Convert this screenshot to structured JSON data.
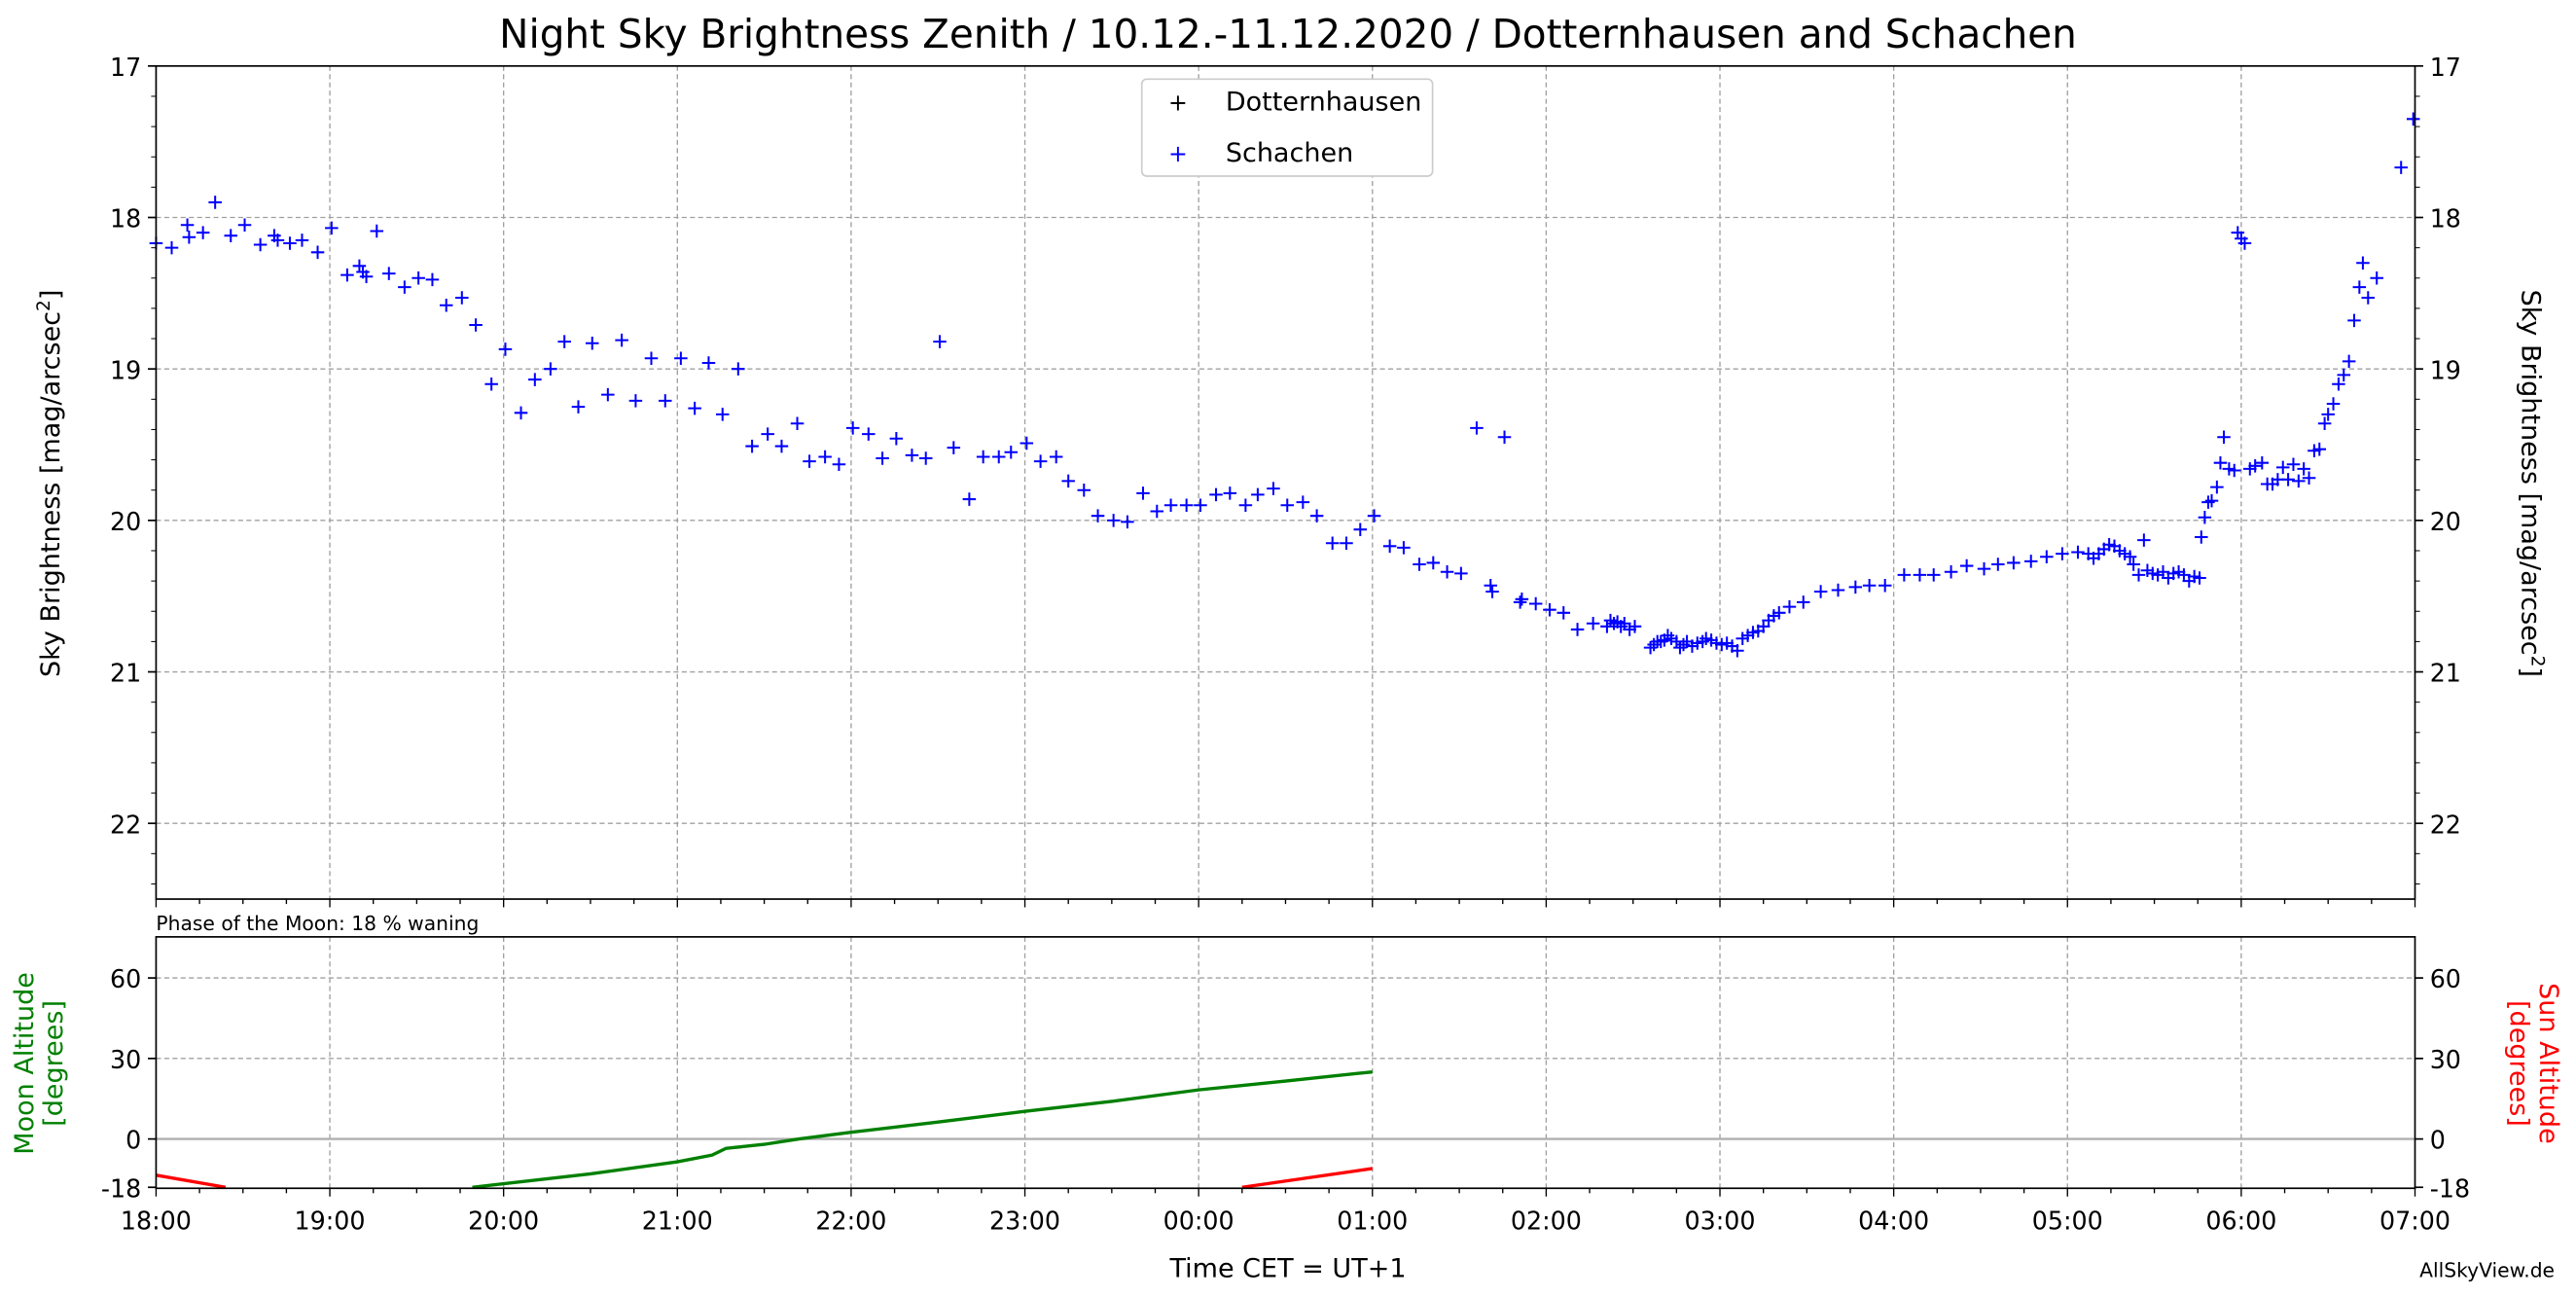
{
  "chart_data": [
    {
      "type": "scatter",
      "title": "Night Sky Brightness Zenith / 10.12.-11.12.2020 / Dotternhausen and Schachen",
      "ylabel": "Sky Brightness [mag/arcsec²]",
      "ylabel_right": "Sky Brightness [mag/arcsec²]",
      "ylim": [
        22.5,
        17
      ],
      "yticks": [
        "17",
        "18",
        "19",
        "20",
        "21",
        "22"
      ],
      "xlim_hours_after_1800": [
        0,
        13
      ],
      "grid": true,
      "legend_position": "top-center",
      "legend": [
        "Dotternhausen",
        "Schachen"
      ],
      "series": [
        {
          "name": "Dotternhausen",
          "color": "#000000",
          "points": []
        },
        {
          "name": "Schachen",
          "color": "#0000ff",
          "points": [
            [
              0,
              18.17
            ],
            [
              0.09,
              18.2
            ],
            [
              0.18,
              18.05
            ],
            [
              0.19,
              18.13
            ],
            [
              0.27,
              18.1
            ],
            [
              0.34,
              17.9
            ],
            [
              0.43,
              18.12
            ],
            [
              0.51,
              18.05
            ],
            [
              0.6,
              18.18
            ],
            [
              0.68,
              18.12
            ],
            [
              0.7,
              18.15
            ],
            [
              0.77,
              18.17
            ],
            [
              0.84,
              18.15
            ],
            [
              0.93,
              18.23
            ],
            [
              1.01,
              18.07
            ],
            [
              1.1,
              18.38
            ],
            [
              1.17,
              18.32
            ],
            [
              1.19,
              18.36
            ],
            [
              1.21,
              18.39
            ],
            [
              1.27,
              18.09
            ],
            [
              1.34,
              18.37
            ],
            [
              1.43,
              18.46
            ],
            [
              1.51,
              18.4
            ],
            [
              1.59,
              18.41
            ],
            [
              1.67,
              18.58
            ],
            [
              1.76,
              18.53
            ],
            [
              1.84,
              18.71
            ],
            [
              1.93,
              19.1
            ],
            [
              2.01,
              18.87
            ],
            [
              2.1,
              19.29
            ],
            [
              2.18,
              19.07
            ],
            [
              2.27,
              19.0
            ],
            [
              2.35,
              18.82
            ],
            [
              2.43,
              19.25
            ],
            [
              2.51,
              18.83
            ],
            [
              2.6,
              19.17
            ],
            [
              2.68,
              18.81
            ],
            [
              2.76,
              19.21
            ],
            [
              2.85,
              18.93
            ],
            [
              2.93,
              19.21
            ],
            [
              3.02,
              18.93
            ],
            [
              3.1,
              19.26
            ],
            [
              3.18,
              18.96
            ],
            [
              3.26,
              19.3
            ],
            [
              3.35,
              19.0
            ],
            [
              3.43,
              19.51
            ],
            [
              3.52,
              19.43
            ],
            [
              3.6,
              19.51
            ],
            [
              3.69,
              19.36
            ],
            [
              3.76,
              19.61
            ],
            [
              3.85,
              19.58
            ],
            [
              3.93,
              19.63
            ],
            [
              4.01,
              19.39
            ],
            [
              4.1,
              19.43
            ],
            [
              4.18,
              19.59
            ],
            [
              4.26,
              19.46
            ],
            [
              4.35,
              19.57
            ],
            [
              4.43,
              19.59
            ],
            [
              4.51,
              18.82
            ],
            [
              4.59,
              19.52
            ],
            [
              4.68,
              19.86
            ],
            [
              4.76,
              19.58
            ],
            [
              4.85,
              19.58
            ],
            [
              4.92,
              19.55
            ],
            [
              5.01,
              19.49
            ],
            [
              5.09,
              19.61
            ],
            [
              5.18,
              19.58
            ],
            [
              5.25,
              19.74
            ],
            [
              5.34,
              19.8
            ],
            [
              5.42,
              19.97
            ],
            [
              5.51,
              20.0
            ],
            [
              5.59,
              20.01
            ],
            [
              5.68,
              19.82
            ],
            [
              5.76,
              19.94
            ],
            [
              5.84,
              19.9
            ],
            [
              5.93,
              19.9
            ],
            [
              6.01,
              19.9
            ],
            [
              6.1,
              19.83
            ],
            [
              6.18,
              19.82
            ],
            [
              6.27,
              19.9
            ],
            [
              6.34,
              19.83
            ],
            [
              6.43,
              19.79
            ],
            [
              6.51,
              19.9
            ],
            [
              6.6,
              19.88
            ],
            [
              6.68,
              19.97
            ],
            [
              6.77,
              20.15
            ],
            [
              6.85,
              20.15
            ],
            [
              6.93,
              20.06
            ],
            [
              7.01,
              19.97
            ],
            [
              7.1,
              20.17
            ],
            [
              7.18,
              20.18
            ],
            [
              7.27,
              20.29
            ],
            [
              7.35,
              20.28
            ],
            [
              7.43,
              20.34
            ],
            [
              7.51,
              20.35
            ],
            [
              7.6,
              19.39
            ],
            [
              7.68,
              20.43
            ],
            [
              7.69,
              20.47
            ],
            [
              7.76,
              19.45
            ],
            [
              7.85,
              20.54
            ],
            [
              7.86,
              20.52
            ],
            [
              7.94,
              20.55
            ],
            [
              8.02,
              20.59
            ],
            [
              8.1,
              20.61
            ],
            [
              8.18,
              20.72
            ],
            [
              8.27,
              20.68
            ],
            [
              8.35,
              20.7
            ],
            [
              8.37,
              20.66
            ],
            [
              8.39,
              20.68
            ],
            [
              8.41,
              20.67
            ],
            [
              8.43,
              20.7
            ],
            [
              8.45,
              20.68
            ],
            [
              8.48,
              20.72
            ],
            [
              8.51,
              20.7
            ],
            [
              8.6,
              20.84
            ],
            [
              8.62,
              20.82
            ],
            [
              8.64,
              20.8
            ],
            [
              8.66,
              20.8
            ],
            [
              8.68,
              20.79
            ],
            [
              8.7,
              20.76
            ],
            [
              8.72,
              20.78
            ],
            [
              8.75,
              20.8
            ],
            [
              8.77,
              20.84
            ],
            [
              8.79,
              20.82
            ],
            [
              8.81,
              20.8
            ],
            [
              8.84,
              20.83
            ],
            [
              8.87,
              20.81
            ],
            [
              8.9,
              20.8
            ],
            [
              8.92,
              20.78
            ],
            [
              8.95,
              20.79
            ],
            [
              8.98,
              20.81
            ],
            [
              9.01,
              20.82
            ],
            [
              9.04,
              20.81
            ],
            [
              9.07,
              20.83
            ],
            [
              9.1,
              20.86
            ],
            [
              9.13,
              20.78
            ],
            [
              9.16,
              20.76
            ],
            [
              9.19,
              20.74
            ],
            [
              9.22,
              20.73
            ],
            [
              9.25,
              20.7
            ],
            [
              9.28,
              20.66
            ],
            [
              9.31,
              20.63
            ],
            [
              9.34,
              20.61
            ],
            [
              9.4,
              20.57
            ],
            [
              9.48,
              20.54
            ],
            [
              9.58,
              20.47
            ],
            [
              9.68,
              20.46
            ],
            [
              9.78,
              20.44
            ],
            [
              9.86,
              20.43
            ],
            [
              9.95,
              20.43
            ],
            [
              10.06,
              20.36
            ],
            [
              10.15,
              20.36
            ],
            [
              10.23,
              20.36
            ],
            [
              10.33,
              20.34
            ],
            [
              10.42,
              20.3
            ],
            [
              10.52,
              20.32
            ],
            [
              10.6,
              20.29
            ],
            [
              10.69,
              20.28
            ],
            [
              10.79,
              20.27
            ],
            [
              10.88,
              20.24
            ],
            [
              10.97,
              20.22
            ],
            [
              11.06,
              20.21
            ],
            [
              11.12,
              20.22
            ],
            [
              11.15,
              20.25
            ],
            [
              11.18,
              20.22
            ],
            [
              11.21,
              20.19
            ],
            [
              11.24,
              20.16
            ],
            [
              11.27,
              20.17
            ],
            [
              11.3,
              20.2
            ],
            [
              11.33,
              20.22
            ],
            [
              11.36,
              20.24
            ],
            [
              11.38,
              20.29
            ],
            [
              11.41,
              20.36
            ],
            [
              11.44,
              20.13
            ],
            [
              11.46,
              20.33
            ],
            [
              11.49,
              20.35
            ],
            [
              11.52,
              20.36
            ],
            [
              11.55,
              20.34
            ],
            [
              11.58,
              20.38
            ],
            [
              11.61,
              20.35
            ],
            [
              11.64,
              20.34
            ],
            [
              11.67,
              20.36
            ],
            [
              11.7,
              20.4
            ],
            [
              11.73,
              20.37
            ],
            [
              11.76,
              20.38
            ],
            [
              11.77,
              20.11
            ],
            [
              11.79,
              19.98
            ],
            [
              11.81,
              19.88
            ],
            [
              11.83,
              19.87
            ],
            [
              11.86,
              19.78
            ],
            [
              11.88,
              19.62
            ],
            [
              11.9,
              19.45
            ],
            [
              11.93,
              19.66
            ],
            [
              11.96,
              19.67
            ],
            [
              11.98,
              18.1
            ],
            [
              12.0,
              18.14
            ],
            [
              12.02,
              18.17
            ],
            [
              12.05,
              19.66
            ],
            [
              12.08,
              19.64
            ],
            [
              12.12,
              19.62
            ],
            [
              12.15,
              19.76
            ],
            [
              12.18,
              19.76
            ],
            [
              12.21,
              19.73
            ],
            [
              12.24,
              19.65
            ],
            [
              12.27,
              19.73
            ],
            [
              12.3,
              19.63
            ],
            [
              12.33,
              19.74
            ],
            [
              12.36,
              19.66
            ],
            [
              12.39,
              19.72
            ],
            [
              12.42,
              19.54
            ],
            [
              12.45,
              19.53
            ],
            [
              12.48,
              19.36
            ],
            [
              12.5,
              19.3
            ],
            [
              12.53,
              19.23
            ],
            [
              12.56,
              19.1
            ],
            [
              12.59,
              19.04
            ],
            [
              12.62,
              18.95
            ],
            [
              12.65,
              18.68
            ],
            [
              12.68,
              18.46
            ],
            [
              12.7,
              18.3
            ],
            [
              12.73,
              18.53
            ],
            [
              12.78,
              18.4
            ],
            [
              12.92,
              17.67
            ],
            [
              12.99,
              17.35
            ]
          ]
        }
      ]
    },
    {
      "type": "line",
      "annotation": "Phase of the Moon: 18 % waning",
      "xlabel": "Time CET = UT+1",
      "ylabel": "Moon Altitude\n[degrees]",
      "ylabel_right": "Sun Altitude\n[degrees]",
      "ylim": [
        -18,
        75
      ],
      "yticks": [
        "-18",
        "0",
        "30",
        "60"
      ],
      "xticks": [
        "18:00",
        "19:00",
        "20:00",
        "21:00",
        "22:00",
        "23:00",
        "00:00",
        "01:00",
        "02:00",
        "03:00",
        "04:00",
        "05:00",
        "06:00",
        "07:00"
      ],
      "series": [
        {
          "name": "Moon Altitude",
          "color": "#008000",
          "points": [
            [
              1.82,
              -18
            ],
            [
              2.5,
              -13
            ],
            [
              3.0,
              -8.5
            ],
            [
              3.2,
              -6
            ],
            [
              3.28,
              -3.5
            ],
            [
              3.5,
              -2
            ],
            [
              3.7,
              0
            ],
            [
              4.0,
              2.5
            ],
            [
              4.5,
              6.3
            ],
            [
              5.0,
              10.3
            ],
            [
              5.5,
              14
            ],
            [
              6.0,
              18.3
            ],
            [
              6.5,
              21.6
            ],
            [
              7.0,
              25
            ]
          ]
        },
        {
          "name": "Sun Altitude",
          "color": "#ff0000",
          "points": [
            [
              0,
              -13.5
            ],
            [
              0.4,
              -18
            ]
          ],
          "points2": [
            [
              6.25,
              -18
            ],
            [
              7.0,
              -11
            ]
          ]
        }
      ]
    }
  ],
  "footer": {
    "credit": "AllSkyView.de"
  }
}
